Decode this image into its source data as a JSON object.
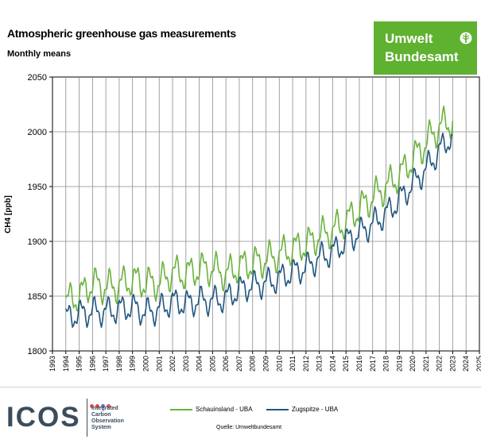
{
  "chart_data": {
    "type": "line",
    "title": "Atmospheric greenhouse gas measurements",
    "subtitle": "Monthly means",
    "xlabel": "",
    "ylabel": "CH4 [ppb]",
    "xlim": [
      1993,
      2025
    ],
    "ylim": [
      1800,
      2050
    ],
    "x_ticks": [
      "1993",
      "1994",
      "1995",
      "1996",
      "1997",
      "1998",
      "1999",
      "2000",
      "2001",
      "2002",
      "2003",
      "2004",
      "2005",
      "2006",
      "2007",
      "2008",
      "2009",
      "2010",
      "2011",
      "2012",
      "2013",
      "2014",
      "2015",
      "2016",
      "2017",
      "2018",
      "2019",
      "2020",
      "2021",
      "2022",
      "2023",
      "2024",
      "2025"
    ],
    "y_ticks": [
      "1800",
      "1850",
      "1900",
      "1950",
      "2000",
      "2050"
    ],
    "grid": true,
    "legend_position": "bottom",
    "series": [
      {
        "name": "Schauinsland - UBA",
        "color": "#6ab33c",
        "x": [
          1994,
          1995,
          1996,
          1997,
          1998,
          1999,
          2000,
          2001,
          2002,
          2003,
          2004,
          2005,
          2006,
          2007,
          2008,
          2009,
          2010,
          2011,
          2012,
          2013,
          2014,
          2015,
          2016,
          2017,
          2018,
          2019,
          2020,
          2021,
          2022,
          2023
        ],
        "y": [
          1845,
          1850,
          1862,
          1858,
          1860,
          1865,
          1862,
          1862,
          1872,
          1870,
          1875,
          1875,
          1870,
          1877,
          1880,
          1883,
          1888,
          1893,
          1897,
          1905,
          1910,
          1918,
          1930,
          1940,
          1950,
          1960,
          1975,
          1990,
          2005,
          2010
        ]
      },
      {
        "name": "Zugspitze - UBA",
        "color": "#1f5680",
        "x": [
          1994,
          1995,
          1996,
          1997,
          1998,
          1999,
          2000,
          2001,
          2002,
          2003,
          2004,
          2005,
          2006,
          2007,
          2008,
          2009,
          2010,
          2011,
          2012,
          2013,
          2014,
          2015,
          2016,
          2017,
          2018,
          2019,
          2020,
          2021,
          2022,
          2023
        ],
        "y": [
          1830,
          1834,
          1836,
          1836,
          1838,
          1840,
          1835,
          1838,
          1845,
          1843,
          1846,
          1846,
          1848,
          1856,
          1860,
          1862,
          1866,
          1872,
          1876,
          1885,
          1890,
          1900,
          1908,
          1916,
          1925,
          1938,
          1952,
          1966,
          1983,
          1997
        ]
      }
    ]
  },
  "logos": {
    "uba_line1": "Umwelt",
    "uba_line2": "Bundesamt",
    "icos_word": "ICOS",
    "icos_tagline": [
      "Integrated",
      "Carbon",
      "Observation",
      "System"
    ]
  },
  "source_text": "Quelle: Umweltbundesamt"
}
